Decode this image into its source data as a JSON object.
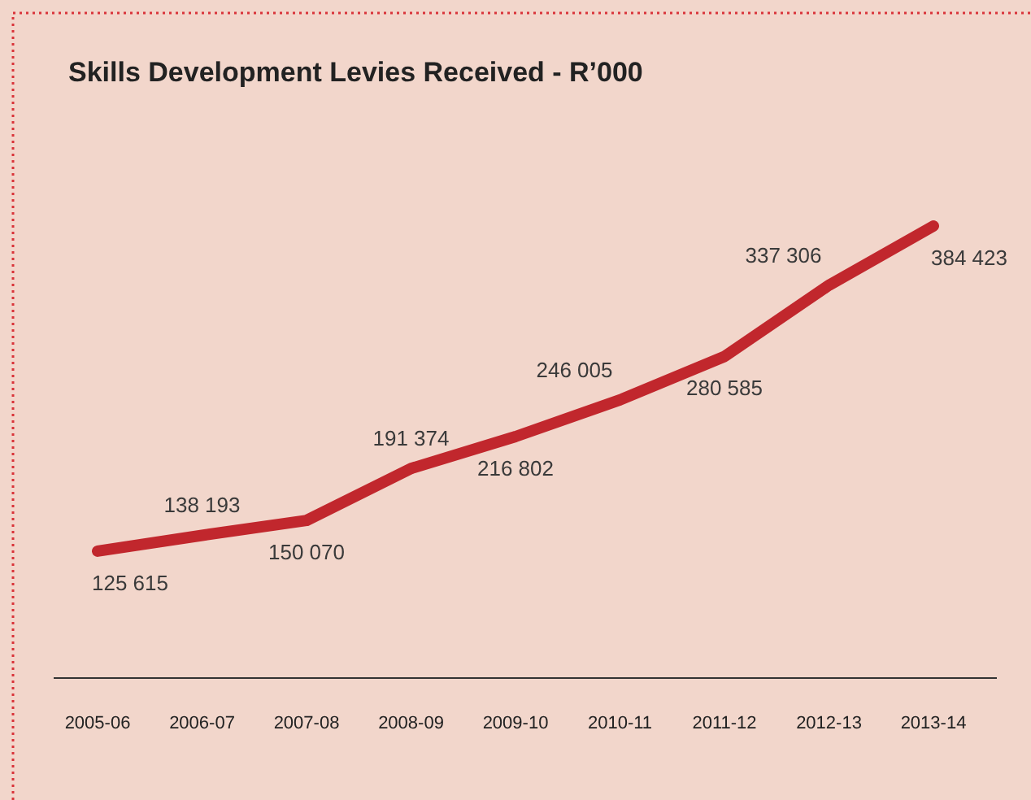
{
  "chart_data": {
    "type": "line",
    "title": "Skills Development Levies Received - R’000",
    "categories": [
      "2005-06",
      "2006-07",
      "2007-08",
      "2008-09",
      "2009-10",
      "2010-11",
      "2011-12",
      "2012-13",
      "2013-14"
    ],
    "values": [
      125615,
      138193,
      150070,
      191374,
      216802,
      246005,
      280585,
      337306,
      384423
    ],
    "value_labels": [
      "125 615",
      "138 193",
      "150 070",
      "191 374",
      "216 802",
      "246 005",
      "280 585",
      "337 306",
      "384 423"
    ],
    "color": "#c1272d"
  }
}
